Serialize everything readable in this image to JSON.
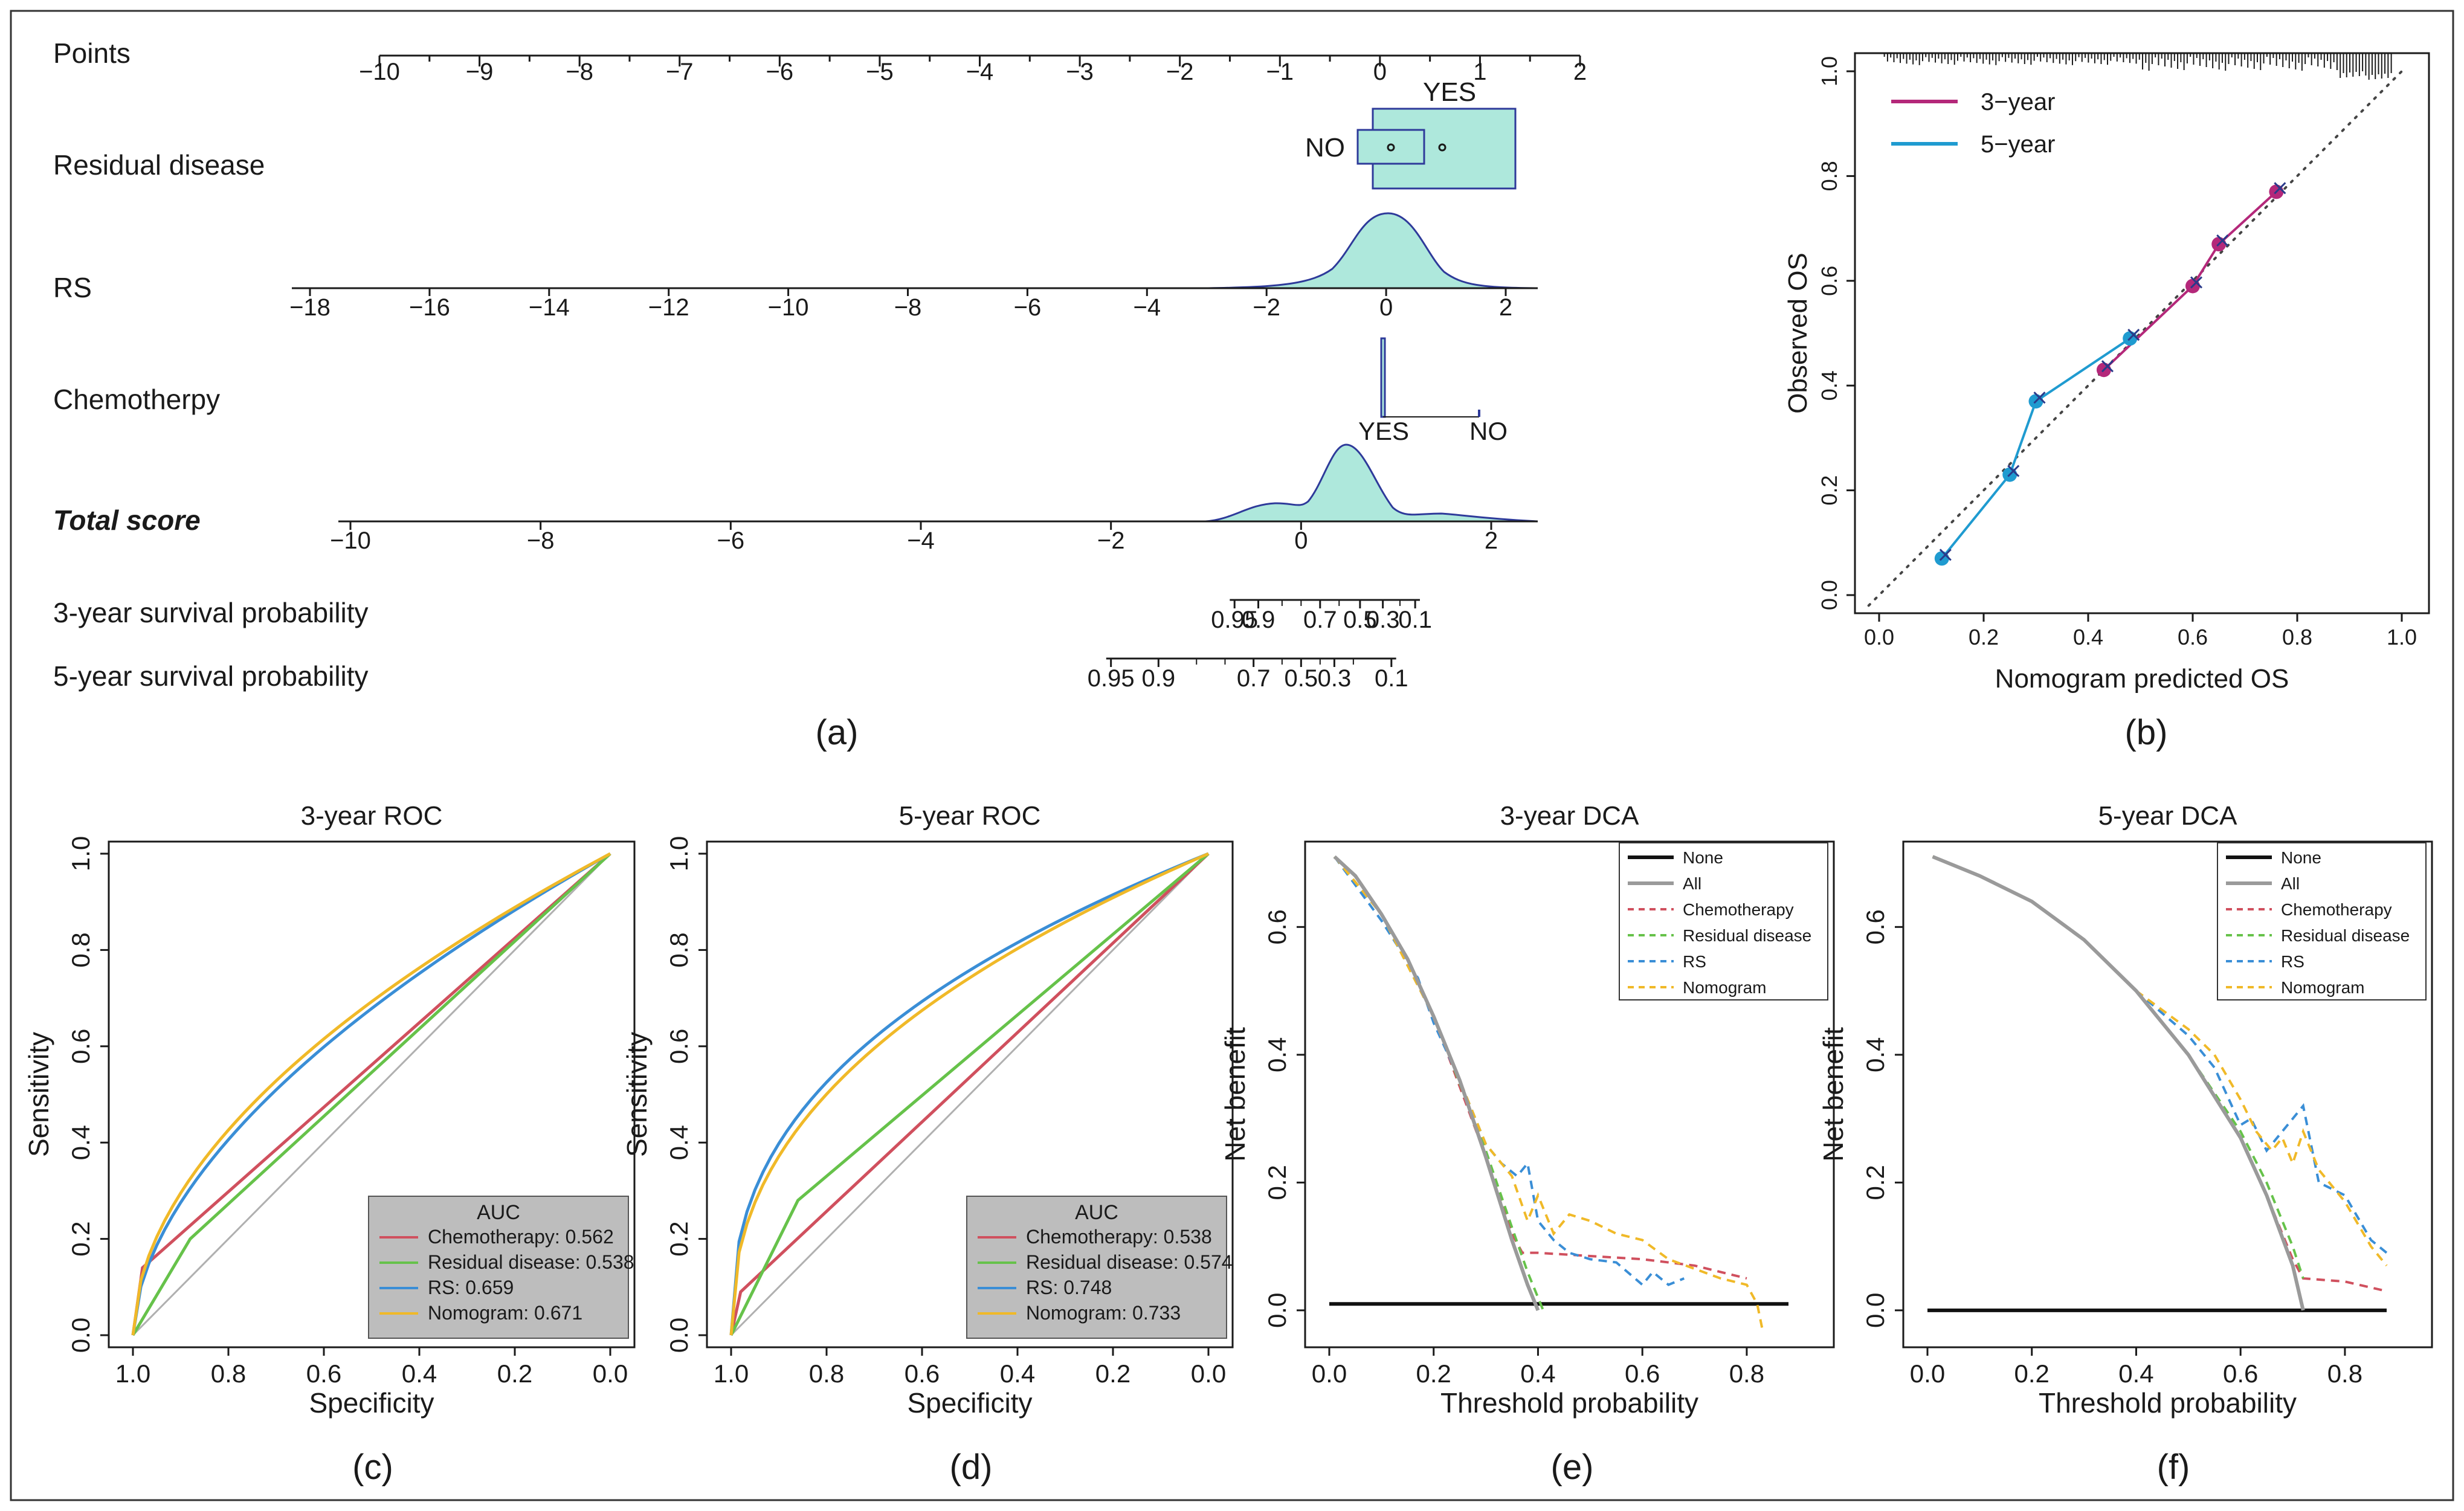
{
  "figure": {
    "panel_labels": [
      "(a)",
      "(b)",
      "(c)",
      "(d)",
      "(e)",
      "(f)"
    ]
  },
  "colors": {
    "fill_teal": "#aee8dc",
    "stroke_navy": "#2e3a9a",
    "cal_3yr": "#b4287a",
    "cal_5yr": "#1f9bd0",
    "roc_chemo": "#d0505e",
    "roc_resid": "#66c24a",
    "roc_rs": "#3a8ed6",
    "roc_nomo": "#f0b928",
    "legend_bg": "#bdbdbd",
    "auc_title": "#e02020"
  },
  "nomogram": {
    "rows": [
      {
        "label": "Points",
        "bold": false
      },
      {
        "label": "Residual disease",
        "bold": false
      },
      {
        "label": "RS",
        "bold": false
      },
      {
        "label": "Chemotherpy",
        "bold": false
      },
      {
        "label": "Total score",
        "bold": true
      },
      {
        "label": "3-year survival probability",
        "bold": false
      },
      {
        "label": "5-year survival probability",
        "bold": false
      }
    ],
    "points_ticks": [
      "-10",
      "-9",
      "-8",
      "-7",
      "-6",
      "-5",
      "-4",
      "-3",
      "-2",
      "-1",
      "0",
      "1",
      "2"
    ],
    "residual_levels": [
      "NO",
      "YES"
    ],
    "rs_ticks": [
      "-18",
      "-16",
      "-14",
      "-12",
      "-10",
      "-8",
      "-6",
      "-4",
      "-2",
      "0",
      "2"
    ],
    "chemo_levels": [
      "YES",
      "NO"
    ],
    "total_ticks": [
      "-10",
      "-8",
      "-6",
      "-4",
      "-2",
      "0",
      "2"
    ],
    "surv3_ticks": [
      {
        "v": -0.7,
        "t": "0.95"
      },
      {
        "v": -0.45,
        "t": "0.9"
      },
      {
        "v": 0.2,
        "t": "0.7"
      },
      {
        "v": 0.62,
        "t": "0.5"
      },
      {
        "v": 0.86,
        "t": "0.3"
      },
      {
        "v": 1.2,
        "t": "0.1"
      }
    ],
    "surv3_minor": [
      -0.2,
      0.0,
      0.4,
      1.04
    ],
    "surv5_ticks": [
      {
        "v": -2.0,
        "t": "0.95"
      },
      {
        "v": -1.5,
        "t": "0.9"
      },
      {
        "v": -0.5,
        "t": "0.7"
      },
      {
        "v": 0.0,
        "t": "0.5"
      },
      {
        "v": 0.35,
        "t": "0.3"
      },
      {
        "v": 0.95,
        "t": "0.1"
      }
    ],
    "surv5_minor": [
      -1.1,
      -0.8,
      -0.2,
      0.2,
      0.55
    ]
  },
  "chart_data": [
    {
      "panel": "b",
      "type": "line",
      "xlabel": "Nomogram predicted OS",
      "ylabel": "Observed OS",
      "xlim": [
        0,
        1
      ],
      "ylim": [
        0,
        1
      ],
      "xticks": [
        "0.0",
        "0.2",
        "0.4",
        "0.6",
        "0.8",
        "1.0"
      ],
      "yticks": [
        "0.0",
        "0.2",
        "0.4",
        "0.6",
        "0.8",
        "1.0"
      ],
      "legend_position": "top-left",
      "series": [
        {
          "name": "3−year",
          "x": [
            0.43,
            0.6,
            0.65,
            0.76
          ],
          "y": [
            0.43,
            0.59,
            0.67,
            0.77
          ]
        },
        {
          "name": "5−year",
          "x": [
            0.12,
            0.25,
            0.3,
            0.48
          ],
          "y": [
            0.07,
            0.23,
            0.37,
            0.49
          ]
        }
      ]
    },
    {
      "panel": "c",
      "type": "line",
      "title": "3-year ROC",
      "xlabel": "Specificity",
      "ylabel": "Sensitivity",
      "xlim": [
        1,
        0
      ],
      "ylim": [
        0,
        1
      ],
      "ticks": [
        "0.0",
        "0.2",
        "0.4",
        "0.6",
        "0.8",
        "1.0"
      ],
      "legend_title": "AUC",
      "legend_position": "bottom-right",
      "series": [
        {
          "name": "Chemotherapy: 0.562",
          "spec": [
            1.0,
            0.98,
            0.0
          ],
          "sens": [
            0.0,
            0.14,
            1.0
          ]
        },
        {
          "name": "Residual disease: 0.538",
          "spec": [
            1.0,
            0.88,
            0.0
          ],
          "sens": [
            0.0,
            0.2,
            1.0
          ]
        },
        {
          "name": "RS: 0.659",
          "power": 0.56
        },
        {
          "name": "Nomogram: 0.671",
          "power": 0.53
        }
      ]
    },
    {
      "panel": "d",
      "type": "line",
      "title": "5-year ROC",
      "xlabel": "Specificity",
      "ylabel": "Sensitivity",
      "xlim": [
        1,
        0
      ],
      "ylim": [
        0,
        1
      ],
      "ticks": [
        "0.0",
        "0.2",
        "0.4",
        "0.6",
        "0.8",
        "1.0"
      ],
      "legend_title": "AUC",
      "legend_position": "bottom-right",
      "series": [
        {
          "name": "Chemotherapy: 0.538",
          "spec": [
            1.0,
            0.98,
            0.0
          ],
          "sens": [
            0.0,
            0.09,
            1.0
          ]
        },
        {
          "name": "Residual disease: 0.574",
          "spec": [
            1.0,
            0.86,
            0.0
          ],
          "sens": [
            0.0,
            0.28,
            1.0
          ]
        },
        {
          "name": "RS: 0.748",
          "power": 0.4
        },
        {
          "name": "Nomogram: 0.733",
          "power": 0.43
        }
      ]
    },
    {
      "panel": "e",
      "type": "line",
      "title": "3-year DCA",
      "xlabel": "Threshold probability",
      "ylabel": "Net benefit",
      "xlim": [
        0,
        0.88
      ],
      "ylim": [
        -0.03,
        0.72
      ],
      "xticks": [
        "0.0",
        "0.2",
        "0.4",
        "0.6",
        "0.8"
      ],
      "yticks": [
        "0.0",
        "0.2",
        "0.4",
        "0.6"
      ],
      "legend_position": "top-right",
      "series": [
        {
          "name": "None",
          "x": [
            0,
            0.88
          ],
          "y": [
            0.01,
            0.01
          ]
        },
        {
          "name": "All",
          "x": [
            0.01,
            0.05,
            0.1,
            0.15,
            0.2,
            0.25,
            0.3,
            0.35,
            0.38,
            0.4
          ],
          "y": [
            0.71,
            0.68,
            0.62,
            0.55,
            0.46,
            0.36,
            0.24,
            0.11,
            0.04,
            0.0
          ]
        },
        {
          "name": "Chemotherapy",
          "x": [
            0.01,
            0.1,
            0.2,
            0.3,
            0.35,
            0.37,
            0.4,
            0.5,
            0.6,
            0.7,
            0.8
          ],
          "y": [
            0.71,
            0.62,
            0.46,
            0.24,
            0.12,
            0.09,
            0.09,
            0.085,
            0.08,
            0.07,
            0.05
          ]
        },
        {
          "name": "Residual disease",
          "x": [
            0.01,
            0.1,
            0.2,
            0.3,
            0.35,
            0.38,
            0.4,
            0.41
          ],
          "y": [
            0.71,
            0.62,
            0.46,
            0.25,
            0.13,
            0.06,
            0.02,
            0.0
          ]
        },
        {
          "name": "RS",
          "x": [
            0.01,
            0.1,
            0.17,
            0.2,
            0.25,
            0.3,
            0.33,
            0.36,
            0.38,
            0.4,
            0.43,
            0.46,
            0.5,
            0.55,
            0.6,
            0.62,
            0.65,
            0.68
          ],
          "y": [
            0.71,
            0.61,
            0.52,
            0.45,
            0.36,
            0.26,
            0.23,
            0.21,
            0.23,
            0.14,
            0.11,
            0.09,
            0.08,
            0.075,
            0.04,
            0.06,
            0.04,
            0.05
          ]
        },
        {
          "name": "Nomogram",
          "x": [
            0.01,
            0.1,
            0.2,
            0.3,
            0.35,
            0.38,
            0.4,
            0.43,
            0.46,
            0.5,
            0.55,
            0.6,
            0.65,
            0.7,
            0.75,
            0.8,
            0.82,
            0.83
          ],
          "y": [
            0.71,
            0.62,
            0.46,
            0.26,
            0.21,
            0.14,
            0.18,
            0.12,
            0.15,
            0.14,
            0.12,
            0.11,
            0.08,
            0.065,
            0.05,
            0.04,
            0.01,
            -0.03
          ]
        }
      ]
    },
    {
      "panel": "f",
      "type": "line",
      "title": "5-year DCA",
      "xlabel": "Threshold probability",
      "ylabel": "Net benefit",
      "xlim": [
        0,
        0.88
      ],
      "ylim": [
        -0.03,
        0.72
      ],
      "xticks": [
        "0.0",
        "0.2",
        "0.4",
        "0.6",
        "0.8"
      ],
      "yticks": [
        "0.0",
        "0.2",
        "0.4",
        "0.6"
      ],
      "legend_position": "top-right",
      "series": [
        {
          "name": "None",
          "x": [
            0,
            0.88
          ],
          "y": [
            0.0,
            0.0
          ]
        },
        {
          "name": "All",
          "x": [
            0.01,
            0.1,
            0.2,
            0.3,
            0.4,
            0.5,
            0.6,
            0.65,
            0.7,
            0.72
          ],
          "y": [
            0.71,
            0.68,
            0.64,
            0.58,
            0.5,
            0.4,
            0.27,
            0.18,
            0.07,
            0.0
          ]
        },
        {
          "name": "Chemotherapy",
          "x": [
            0.01,
            0.1,
            0.2,
            0.3,
            0.4,
            0.5,
            0.6,
            0.65,
            0.7,
            0.72,
            0.8,
            0.88
          ],
          "y": [
            0.71,
            0.68,
            0.64,
            0.58,
            0.5,
            0.4,
            0.27,
            0.18,
            0.08,
            0.05,
            0.045,
            0.03
          ]
        },
        {
          "name": "Residual disease",
          "x": [
            0.01,
            0.1,
            0.2,
            0.3,
            0.4,
            0.5,
            0.6,
            0.65,
            0.7,
            0.72
          ],
          "y": [
            0.71,
            0.68,
            0.64,
            0.58,
            0.5,
            0.4,
            0.28,
            0.2,
            0.1,
            0.05
          ]
        },
        {
          "name": "RS",
          "x": [
            0.01,
            0.1,
            0.2,
            0.3,
            0.4,
            0.5,
            0.55,
            0.6,
            0.62,
            0.65,
            0.68,
            0.7,
            0.72,
            0.75,
            0.8,
            0.85,
            0.88
          ],
          "y": [
            0.71,
            0.68,
            0.64,
            0.58,
            0.5,
            0.43,
            0.38,
            0.29,
            0.3,
            0.25,
            0.28,
            0.3,
            0.32,
            0.2,
            0.18,
            0.11,
            0.09
          ]
        },
        {
          "name": "Nomogram",
          "x": [
            0.01,
            0.1,
            0.2,
            0.3,
            0.4,
            0.5,
            0.55,
            0.6,
            0.63,
            0.66,
            0.68,
            0.7,
            0.72,
            0.75,
            0.8,
            0.85,
            0.88
          ],
          "y": [
            0.71,
            0.68,
            0.64,
            0.58,
            0.5,
            0.44,
            0.4,
            0.33,
            0.28,
            0.25,
            0.27,
            0.23,
            0.28,
            0.22,
            0.17,
            0.1,
            0.07
          ]
        }
      ]
    }
  ]
}
